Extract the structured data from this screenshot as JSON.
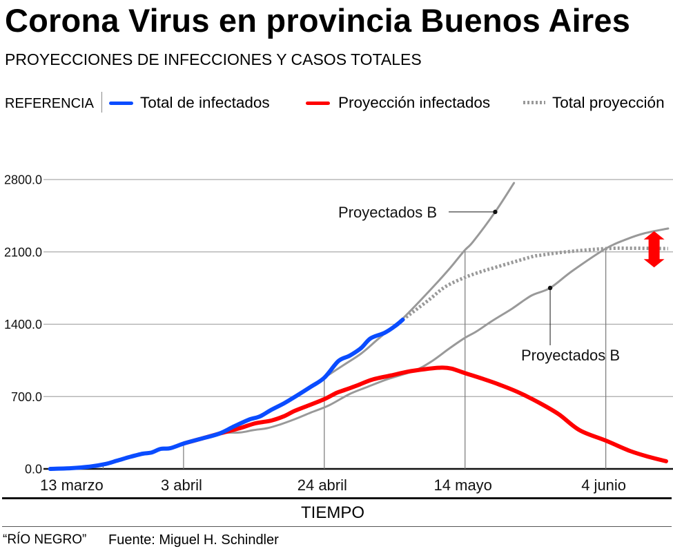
{
  "header": {
    "title": "Corona Virus en provincia Buenos Aires",
    "subtitle": "PROYECCIONES DE INFECCIONES Y CASOS TOTALES"
  },
  "legend": {
    "label": "REFERENCIA",
    "items": [
      {
        "label": "Total de infectados",
        "color": "#0a4cff",
        "dashed": false
      },
      {
        "label": "Proyección infectados",
        "color": "#ff0000",
        "dashed": false
      },
      {
        "label": "Total proyección",
        "color": "#999999",
        "dashed": true
      }
    ]
  },
  "chart_data": {
    "type": "line",
    "title": "Corona Virus en provincia Buenos Aires",
    "subtitle": "PROYECCIONES DE INFECCIONES Y CASOS TOTALES",
    "xlabel": "TIEMPO",
    "ylabel": "",
    "xlim": [
      0,
      94
    ],
    "ylim": [
      0,
      2800
    ],
    "grid": true,
    "legend_position": "top",
    "y_ticks": [
      {
        "value": 0,
        "label": "0.0"
      },
      {
        "value": 700,
        "label": "700.0"
      },
      {
        "value": 1400,
        "label": "1400.0"
      },
      {
        "value": 2100,
        "label": "2100.0"
      },
      {
        "value": 2800,
        "label": "2800.0"
      }
    ],
    "x_ticks": [
      {
        "x": 0,
        "label": "13 marzo"
      },
      {
        "x": 21,
        "label": "3 abril"
      },
      {
        "x": 42,
        "label": "24 abril"
      },
      {
        "x": 63,
        "label": "14 mayo"
      },
      {
        "x": 84,
        "label": "4 junio"
      }
    ],
    "guides": [
      {
        "x": 9,
        "y": 40
      },
      {
        "x": 21,
        "y": 247
      },
      {
        "x": 42,
        "y": 882
      },
      {
        "x": 63,
        "y": 2112
      },
      {
        "x": 84,
        "y": 2132
      }
    ],
    "series": [
      {
        "name": "Proyectados B",
        "color": "#999999",
        "dashed": false,
        "thin": true,
        "points": [
          [
            21.1,
            247
          ],
          [
            26.3,
            341
          ],
          [
            29.4,
            352
          ],
          [
            31.4,
            375
          ],
          [
            33.5,
            394
          ],
          [
            35.5,
            432
          ],
          [
            37.6,
            481
          ],
          [
            40,
            545
          ],
          [
            42.7,
            615
          ],
          [
            45.8,
            725
          ],
          [
            48.5,
            795
          ],
          [
            51.5,
            870
          ],
          [
            55.4,
            949
          ],
          [
            58,
            1040
          ],
          [
            60.6,
            1163
          ],
          [
            62.9,
            1265
          ],
          [
            64.7,
            1330
          ],
          [
            67,
            1430
          ],
          [
            70,
            1550
          ],
          [
            72.9,
            1677
          ],
          [
            75.7,
            1751
          ],
          [
            79,
            1915
          ],
          [
            84,
            2132
          ],
          [
            87,
            2220
          ],
          [
            89.7,
            2279
          ],
          [
            93.3,
            2326
          ]
        ]
      },
      {
        "name": "Proyectados B",
        "color": "#999999",
        "dashed": false,
        "thin": true,
        "points": [
          [
            21.1,
            247
          ],
          [
            26,
            340
          ],
          [
            31,
            475
          ],
          [
            36,
            640
          ],
          [
            40,
            795
          ],
          [
            42,
            882
          ],
          [
            45,
            1010
          ],
          [
            47.5,
            1116
          ],
          [
            50,
            1255
          ],
          [
            52.6,
            1397
          ],
          [
            53.7,
            1455
          ],
          [
            57.5,
            1710
          ],
          [
            60.6,
            1931
          ],
          [
            62.9,
            2112
          ],
          [
            64.2,
            2199
          ],
          [
            67.5,
            2487
          ],
          [
            70.3,
            2767
          ]
        ]
      },
      {
        "name": "Total proyección",
        "color": "#999999",
        "dashed": true,
        "thin": false,
        "points": [
          [
            53.7,
            1444
          ],
          [
            57.5,
            1630
          ],
          [
            60,
            1760
          ],
          [
            62.9,
            1851
          ],
          [
            65.7,
            1915
          ],
          [
            67.8,
            1955
          ],
          [
            72.9,
            2052
          ],
          [
            74,
            2065
          ],
          [
            78,
            2100
          ],
          [
            84,
            2132
          ],
          [
            88,
            2135
          ],
          [
            93.3,
            2132
          ]
        ]
      },
      {
        "name": "Proyección infectados",
        "color": "#ff0000",
        "dashed": false,
        "thin": false,
        "points": [
          [
            21.1,
            247
          ],
          [
            23.5,
            290
          ],
          [
            26.3,
            341
          ],
          [
            29.4,
            394
          ],
          [
            31.7,
            441
          ],
          [
            34.1,
            468
          ],
          [
            36,
            510
          ],
          [
            37.6,
            562
          ],
          [
            39.5,
            610
          ],
          [
            42,
            675
          ],
          [
            43.8,
            735
          ],
          [
            45.1,
            765
          ],
          [
            47,
            810
          ],
          [
            49.2,
            865
          ],
          [
            52,
            905
          ],
          [
            54.4,
            940
          ],
          [
            57,
            965
          ],
          [
            59.5,
            980
          ],
          [
            61,
            970
          ],
          [
            62.9,
            929
          ],
          [
            65.5,
            875
          ],
          [
            68.1,
            816
          ],
          [
            71,
            740
          ],
          [
            74,
            642
          ],
          [
            77,
            528
          ],
          [
            80.1,
            374
          ],
          [
            84,
            274
          ],
          [
            87.6,
            174
          ],
          [
            90.5,
            115
          ],
          [
            93,
            74
          ]
        ]
      },
      {
        "name": "Total de infectados",
        "color": "#0a4cff",
        "dashed": false,
        "thin": false,
        "points": [
          [
            1.1,
            0
          ],
          [
            4.2,
            7
          ],
          [
            7,
            22
          ],
          [
            9.4,
            48
          ],
          [
            11,
            78
          ],
          [
            12.9,
            114
          ],
          [
            14.9,
            147
          ],
          [
            16.2,
            158
          ],
          [
            17.6,
            194
          ],
          [
            19,
            200
          ],
          [
            21.1,
            247
          ],
          [
            23.5,
            290
          ],
          [
            26.3,
            341
          ],
          [
            28.5,
            410
          ],
          [
            30.7,
            475
          ],
          [
            32.4,
            508
          ],
          [
            34,
            568
          ],
          [
            36,
            635
          ],
          [
            37.9,
            709
          ],
          [
            40,
            795
          ],
          [
            42,
            882
          ],
          [
            44.1,
            1043
          ],
          [
            45.8,
            1096
          ],
          [
            47.5,
            1170
          ],
          [
            48.9,
            1263
          ],
          [
            51,
            1317
          ],
          [
            52.6,
            1384
          ],
          [
            53.7,
            1444
          ]
        ]
      }
    ],
    "annotations": [
      {
        "text": "Proyectados B",
        "x": 67.5,
        "y": 2487
      },
      {
        "text": "Proyectados B",
        "x": 75.7,
        "y": 1751
      }
    ],
    "range_arrow": {
      "x": 91.2,
      "y_from": 1950,
      "y_to": 2300,
      "color": "#ff0000"
    }
  },
  "footer": {
    "source_outlet": "“RÍO NEGRO”",
    "credit": "Fuente: Miguel H. Schindler"
  }
}
